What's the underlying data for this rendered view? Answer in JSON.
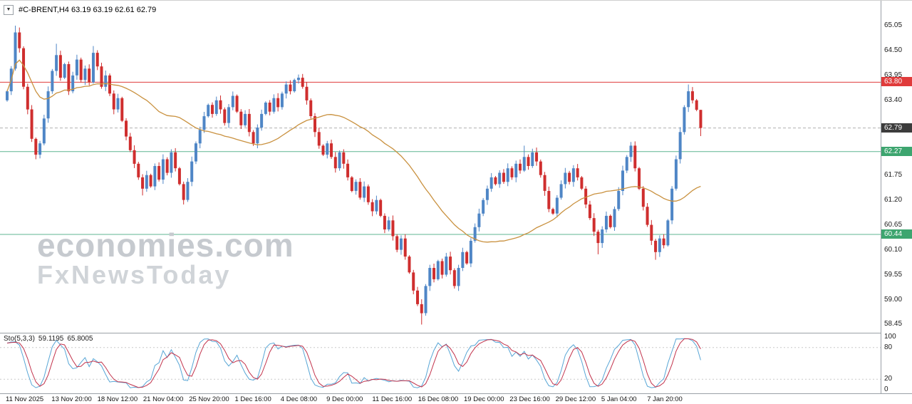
{
  "header": {
    "symbol": "#C-BRENT,H4",
    "ohlc": "63.19 63.19 62.61 62.79",
    "dropdown_icon": "▼"
  },
  "watermark": {
    "line1": "economies.com",
    "line2": "FxNewsToday"
  },
  "price_axis": {
    "ticks": [
      "65.05",
      "64.50",
      "63.95",
      "63.40",
      "61.75",
      "61.20",
      "60.65",
      "60.10",
      "59.55",
      "59.00",
      "58.45"
    ],
    "badges": [
      {
        "value": "63.80",
        "price": 63.8,
        "bg": "#e03b3b",
        "fg": "#ffffff"
      },
      {
        "value": "62.79",
        "price": 62.79,
        "bg": "#3c3c3c",
        "fg": "#ffffff"
      },
      {
        "value": "62.27",
        "price": 62.27,
        "bg": "#3da56f",
        "fg": "#ffffff"
      },
      {
        "value": "60.44",
        "price": 60.44,
        "bg": "#3da56f",
        "fg": "#ffffff"
      }
    ]
  },
  "time_axis": {
    "labels": [
      "11 Nov 2025",
      "13 Nov 20:00",
      "18 Nov 12:00",
      "21 Nov 04:00",
      "25 Nov 20:00",
      "1 Dec 16:00",
      "4 Dec 08:00",
      "9 Dec 00:00",
      "11 Dec 16:00",
      "16 Dec 08:00",
      "19 Dec 00:00",
      "23 Dec 16:00",
      "29 Dec 12:00",
      "5 Jan 04:00",
      "7 Jan 20:00"
    ]
  },
  "stochastic": {
    "label": "Sto(5,3,3)",
    "value_main": "59.1195",
    "value_signal": "65.8005",
    "axis_labels": [
      "100",
      "80",
      "20",
      "0"
    ],
    "grid_levels": [
      80,
      20
    ],
    "main_color": "#58a6d6",
    "signal_color": "#c2334c"
  },
  "chart_data": {
    "type": "candlestick",
    "symbol": "#C-BRENT,H4",
    "timeframe": "H4",
    "last_ohlc": {
      "open": 63.19,
      "high": 63.19,
      "low": 62.61,
      "close": 62.79
    },
    "price_range": [
      58.3,
      65.6
    ],
    "visible_tick_values": [
      65.05,
      64.5,
      63.95,
      63.4,
      61.75,
      61.2,
      60.65,
      60.1,
      59.55,
      59.0,
      58.45
    ],
    "hlines": [
      {
        "price": 63.8,
        "color": "#e03b3b",
        "style": "solid",
        "label": "63.80"
      },
      {
        "price": 62.79,
        "color": "#b0b0b0",
        "style": "dashed",
        "label": "62.79"
      },
      {
        "price": 62.27,
        "color": "#5fb592",
        "style": "solid",
        "label": "62.27"
      },
      {
        "price": 60.44,
        "color": "#5fb592",
        "style": "solid",
        "label": "60.44"
      }
    ],
    "ma": {
      "period": 34,
      "color": "#c9913f"
    },
    "up_color": "#4f86c6",
    "down_color": "#cf2e2e",
    "first_open": 63.4,
    "closes": [
      63.6,
      64.1,
      64.9,
      64.55,
      63.7,
      63.2,
      62.55,
      62.2,
      62.45,
      63.0,
      63.6,
      64.05,
      64.4,
      63.9,
      64.2,
      63.6,
      63.95,
      64.3,
      63.85,
      64.1,
      63.8,
      64.45,
      64.15,
      63.7,
      63.95,
      63.55,
      63.2,
      63.45,
      62.95,
      62.6,
      62.3,
      62.0,
      61.7,
      61.45,
      61.75,
      61.5,
      61.95,
      61.65,
      62.1,
      61.8,
      62.25,
      61.9,
      61.55,
      61.2,
      61.6,
      62.05,
      62.45,
      62.75,
      63.05,
      63.3,
      63.1,
      63.4,
      63.2,
      62.9,
      63.25,
      63.5,
      63.15,
      62.85,
      63.1,
      62.7,
      62.45,
      62.8,
      63.1,
      63.35,
      63.15,
      63.45,
      63.25,
      63.55,
      63.75,
      63.6,
      63.85,
      63.9,
      63.7,
      63.4,
      63.05,
      62.7,
      62.4,
      62.2,
      62.45,
      62.15,
      61.9,
      62.25,
      62.0,
      61.7,
      61.4,
      61.6,
      61.25,
      61.5,
      61.15,
      60.95,
      61.2,
      60.85,
      60.55,
      60.75,
      60.4,
      60.1,
      60.35,
      59.95,
      59.6,
      59.2,
      58.9,
      58.7,
      59.3,
      59.7,
      59.45,
      59.85,
      59.55,
      59.95,
      59.65,
      59.3,
      59.7,
      60.05,
      59.8,
      60.3,
      60.6,
      60.9,
      61.2,
      61.45,
      61.7,
      61.55,
      61.8,
      61.6,
      61.9,
      61.7,
      62.0,
      61.85,
      62.15,
      61.95,
      62.25,
      62.05,
      61.75,
      61.4,
      61.0,
      60.9,
      61.25,
      61.55,
      61.8,
      61.6,
      61.9,
      61.7,
      61.45,
      61.1,
      60.8,
      60.5,
      60.25,
      60.55,
      60.85,
      60.6,
      61.0,
      61.4,
      61.85,
      62.15,
      62.4,
      61.9,
      61.45,
      61.05,
      60.65,
      60.3,
      60.05,
      60.35,
      60.2,
      60.75,
      61.45,
      62.1,
      62.7,
      63.25,
      63.6,
      63.4,
      63.19,
      62.79
    ],
    "wick_overrides": [
      {
        "i": 2,
        "h": 65.05
      },
      {
        "i": 7,
        "l": 62.1
      },
      {
        "i": 12,
        "h": 64.65
      },
      {
        "i": 21,
        "h": 64.6
      },
      {
        "i": 33,
        "l": 61.3
      },
      {
        "i": 43,
        "l": 61.1
      },
      {
        "i": 71,
        "h": 63.97
      },
      {
        "i": 101,
        "l": 58.45
      },
      {
        "i": 126,
        "h": 62.4
      },
      {
        "i": 144,
        "l": 60.0
      },
      {
        "i": 152,
        "h": 62.48
      },
      {
        "i": 158,
        "l": 59.88
      },
      {
        "i": 166,
        "h": 63.75
      },
      {
        "i": 169,
        "h": 63.19,
        "l": 62.61
      }
    ],
    "stochastic_params": {
      "k": 5,
      "d": 3,
      "slowing": 3
    }
  }
}
